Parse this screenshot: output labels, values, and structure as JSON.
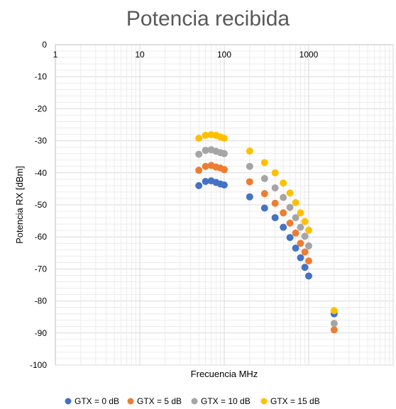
{
  "chart_data": {
    "type": "scatter",
    "title": "Potencia recibida",
    "xlabel": "Frecuencia MHz",
    "ylabel": "Potencia RX [dBm]",
    "x_scale": "log",
    "xlim": [
      1,
      10000
    ],
    "ylim": [
      -100,
      0
    ],
    "x_ticks": [
      1,
      10,
      100,
      1000
    ],
    "x_tick_labels": [
      "1",
      "10",
      "100",
      "1000"
    ],
    "y_ticks": [
      0,
      -10,
      -20,
      -30,
      -40,
      -50,
      -60,
      -70,
      -80,
      -90,
      -100
    ],
    "y_tick_labels": [
      "0",
      "-10",
      "-20",
      "-30",
      "-40",
      "-50",
      "-60",
      "-70",
      "-80",
      "-90",
      "-100"
    ],
    "grid": true,
    "legend_position": "bottom",
    "series": [
      {
        "name": "GTX = 0 dB",
        "color": "#4472C4",
        "x": [
          50,
          60,
          70,
          80,
          90,
          100,
          200,
          300,
          400,
          500,
          600,
          700,
          800,
          900,
          1000,
          2000
        ],
        "y": [
          -44,
          -42.7,
          -42.5,
          -43,
          -43.5,
          -43.8,
          -47.5,
          -51,
          -54,
          -57,
          -60.2,
          -63.5,
          -66.5,
          -69.5,
          -72.2,
          -84
        ]
      },
      {
        "name": "GTX = 5 dB",
        "color": "#ED7D31",
        "x": [
          50,
          60,
          70,
          80,
          90,
          100,
          200,
          300,
          400,
          500,
          600,
          700,
          800,
          900,
          1000,
          2000
        ],
        "y": [
          -39.2,
          -38,
          -37.7,
          -38.2,
          -38.5,
          -39,
          -42.8,
          -46.5,
          -49.5,
          -52.5,
          -55.7,
          -58.8,
          -62,
          -64.7,
          -67.5,
          -89
        ]
      },
      {
        "name": "GTX = 10 dB",
        "color": "#A5A5A5",
        "x": [
          50,
          60,
          70,
          80,
          90,
          100,
          200,
          300,
          400,
          500,
          600,
          700,
          800,
          900,
          1000,
          2000
        ],
        "y": [
          -34.2,
          -33,
          -32.8,
          -33.3,
          -33.7,
          -34,
          -38,
          -41.8,
          -44.7,
          -47.7,
          -50.8,
          -54,
          -57,
          -59.8,
          -62.8,
          -87
        ]
      },
      {
        "name": "GTX = 15 dB",
        "color": "#FFC000",
        "x": [
          50,
          60,
          70,
          80,
          90,
          100,
          200,
          300,
          400,
          500,
          600,
          700,
          800,
          900,
          1000,
          2000
        ],
        "y": [
          -29.2,
          -28.3,
          -28.1,
          -28.3,
          -28.8,
          -29.2,
          -33.2,
          -36.8,
          -40,
          -43.2,
          -46.3,
          -49.3,
          -52.5,
          -55.2,
          -57.9,
          -83
        ]
      }
    ]
  }
}
